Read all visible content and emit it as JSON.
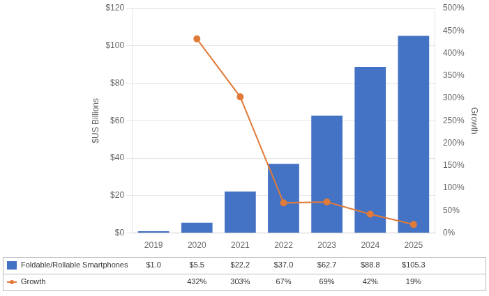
{
  "chart_data": {
    "type": "bar",
    "categories": [
      "2019",
      "2020",
      "2021",
      "2022",
      "2023",
      "2024",
      "2025"
    ],
    "series": [
      {
        "name": "Foldable/Rollable Smartphones",
        "type": "bar",
        "color": "#4472C4",
        "values": [
          1.0,
          5.5,
          22.2,
          37.0,
          62.7,
          88.8,
          105.3
        ],
        "value_labels": [
          "$1.0",
          "$5.5",
          "$22.2",
          "$37.0",
          "$62.7",
          "$88.8",
          "$105.3"
        ]
      },
      {
        "name": "Growth",
        "type": "line",
        "color": "#E07B39",
        "marker": "circle",
        "axis": "y2",
        "values": [
          null,
          432,
          303,
          67,
          69,
          42,
          19
        ],
        "value_labels": [
          null,
          "432%",
          "303%",
          "67%",
          "69%",
          "42%",
          "19%"
        ]
      }
    ],
    "ylabel": "$US Billions",
    "y2label": "Growth",
    "ylim": [
      0,
      120
    ],
    "yticks": [
      {
        "value": 0,
        "label": "$0"
      },
      {
        "value": 20,
        "label": "$20"
      },
      {
        "value": 40,
        "label": "$40"
      },
      {
        "value": 60,
        "label": "$60"
      },
      {
        "value": 80,
        "label": "$80"
      },
      {
        "value": 100,
        "label": "$100"
      },
      {
        "value": 120,
        "label": "$120"
      }
    ],
    "y2lim": [
      0,
      500
    ],
    "y2ticks": [
      {
        "value": 0,
        "label": "0%"
      },
      {
        "value": 50,
        "label": "50%"
      },
      {
        "value": 100,
        "label": "100%"
      },
      {
        "value": 150,
        "label": "150%"
      },
      {
        "value": 200,
        "label": "200%"
      },
      {
        "value": 250,
        "label": "250%"
      },
      {
        "value": 300,
        "label": "300%"
      },
      {
        "value": 350,
        "label": "350%"
      },
      {
        "value": 400,
        "label": "400%"
      },
      {
        "value": 450,
        "label": "450%"
      },
      {
        "value": 500,
        "label": "500%"
      }
    ],
    "grid": true,
    "data_labels": true
  }
}
